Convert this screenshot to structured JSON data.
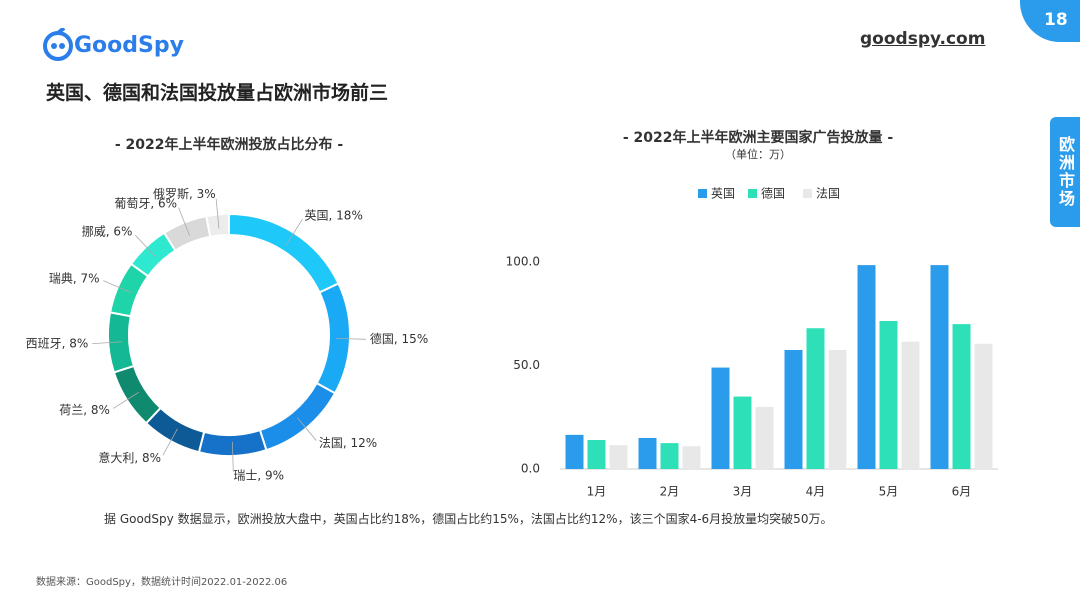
{
  "header": {
    "logo": "GoodSpy",
    "site": "goodspy.com",
    "page": "18",
    "title": "英国、德国和法国投放量占欧洲市场前三",
    "tab": "欧洲市场"
  },
  "chart_data": [
    {
      "type": "pie",
      "title": "- 2022年上半年欧洲投放占比分布 -",
      "values": [
        18,
        15,
        12,
        9,
        8,
        8,
        8,
        7,
        6,
        6,
        3
      ],
      "value_labels": [
        "英国, 18%",
        "德国, 15%",
        "法国, 12%",
        "瑞士, 9%",
        "意大利, 8%",
        "荷兰, 8%",
        "西班牙, 8%",
        "瑞典, 7%",
        "挪威, 6%",
        "葡萄牙, 6%",
        "俄罗斯, 3%"
      ],
      "colors": [
        "#1ec8f8",
        "#1aaaf5",
        "#1a8ee8",
        "#1572c8",
        "#0d5a96",
        "#0f8a6e",
        "#14b894",
        "#1fd4a8",
        "#2ee8d0",
        "#d9d9d9",
        "#ececec"
      ]
    },
    {
      "type": "bar",
      "title": "- 2022年上半年欧洲主要国家广告投放量 -",
      "subtitle": "（单位：万）",
      "categories": [
        "1月",
        "2月",
        "3月",
        "4月",
        "5月",
        "6月"
      ],
      "series": [
        {
          "name": "英国",
          "color": "#2b9cec",
          "values": [
            16.5,
            15,
            49,
            57.5,
            98.5,
            98.5
          ]
        },
        {
          "name": "德国",
          "color": "#2de0b8",
          "values": [
            14,
            12.5,
            35,
            68,
            71.5,
            70
          ]
        },
        {
          "name": "法国",
          "color": "#e8e8e8",
          "values": [
            11.5,
            11,
            30,
            57.5,
            61.5,
            60.5
          ]
        }
      ],
      "ylim": [
        0,
        100
      ],
      "yticks": [
        {
          "value": 0,
          "label": "0.0"
        },
        {
          "value": 50,
          "label": "50.0"
        },
        {
          "value": 100,
          "label": "100.0"
        }
      ],
      "grid": false,
      "legend": "top"
    }
  ],
  "note": "据 GoodSpy 数据显示，欧洲投放大盘中，英国占比约18%，德国占比约15%，法国占比约12%，该三个国家4-6月投放量均突破50万。",
  "source": "数据来源：GoodSpy，数据统计时间2022.01-2022.06"
}
